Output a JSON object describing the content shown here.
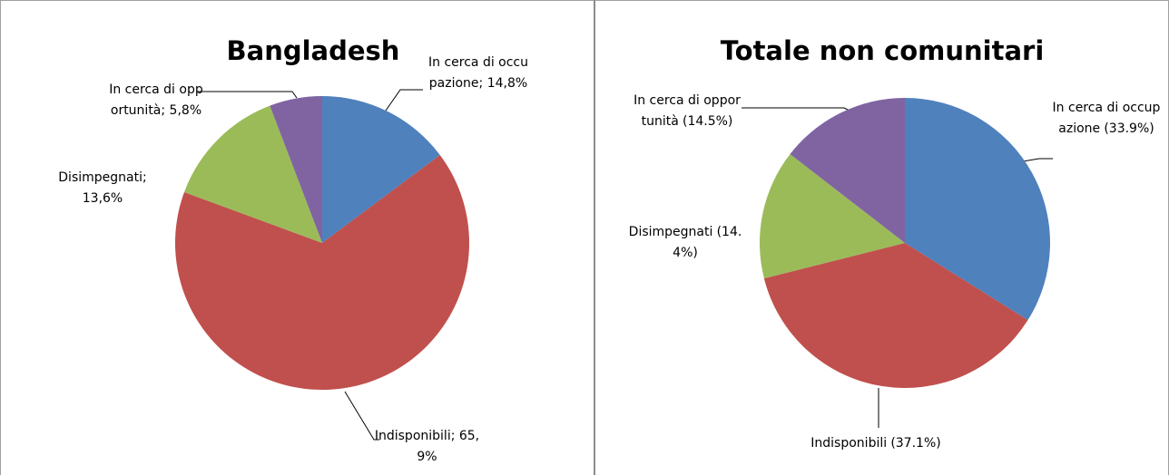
{
  "chart_data": [
    {
      "type": "pie",
      "title": "Bangladesh",
      "categories": [
        "In cerca di occupazione",
        "Indisponibili",
        "Disimpegnati",
        "In cerca di opportunità"
      ],
      "values": [
        14.8,
        65.9,
        13.6,
        5.8
      ],
      "value_labels": [
        "; 14,8%",
        "; 65,9%",
        "; 13,6%",
        "; 5,8%"
      ],
      "colors": [
        "#4f81bd",
        "#c0504d",
        "#9bbb59",
        "#8064a2"
      ]
    },
    {
      "type": "pie",
      "title": "Totale non comunitari",
      "categories": [
        "In cerca di occupazione",
        "Indisponibili",
        "Disimpegnati",
        "In cerca di opportunità"
      ],
      "values": [
        33.9,
        37.1,
        14.4,
        14.5
      ],
      "value_labels": [
        "(33.9%)",
        "(37.1%)",
        "(14.4%)",
        "(14.5%)"
      ],
      "colors": [
        "#4f81bd",
        "#c0504d",
        "#9bbb59",
        "#8064a2"
      ]
    }
  ]
}
